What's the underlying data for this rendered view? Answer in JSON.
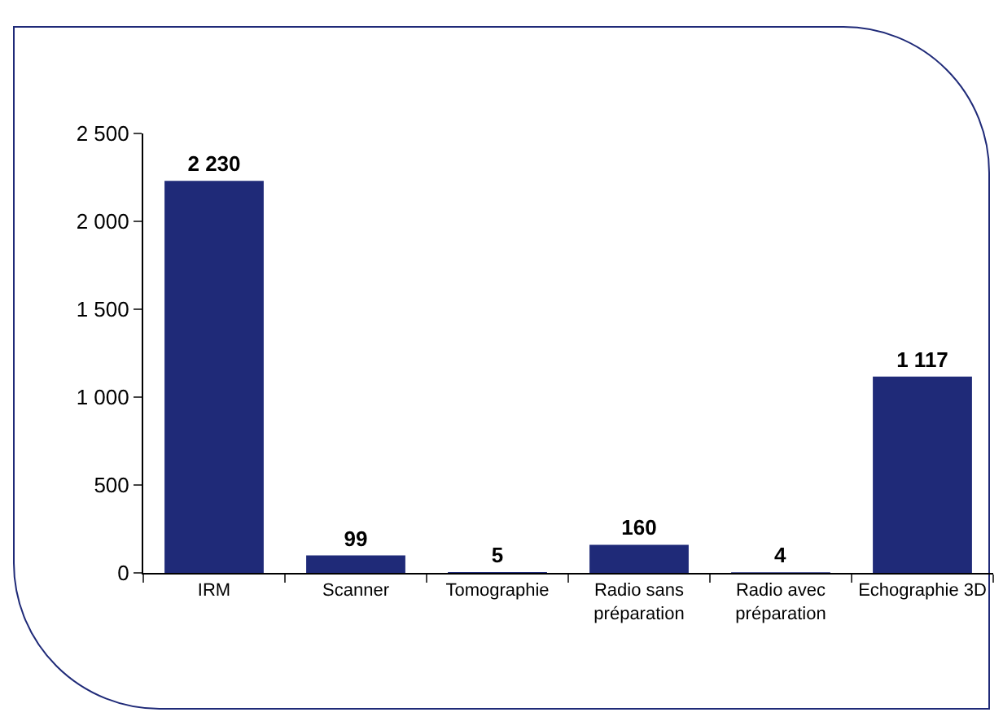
{
  "chart_data": {
    "type": "bar",
    "categories": [
      "IRM",
      "Scanner",
      "Tomographie",
      "Radio sans préparation",
      "Radio avec préparation",
      "Echographie 3D"
    ],
    "values": [
      2230,
      99,
      5,
      160,
      4,
      1117
    ],
    "value_labels": [
      "2 230",
      "99",
      "5",
      "160",
      "4",
      "1 117"
    ],
    "color": "#1f2a78",
    "ylim": [
      0,
      2500
    ],
    "yticks": [
      {
        "value": 0,
        "label": "0"
      },
      {
        "value": 500,
        "label": "500"
      },
      {
        "value": 1000,
        "label": "1 000"
      },
      {
        "value": 1500,
        "label": "1 500"
      },
      {
        "value": 2000,
        "label": "2 000"
      },
      {
        "value": 2500,
        "label": "2 500"
      }
    ],
    "grid": false,
    "legend": false
  }
}
